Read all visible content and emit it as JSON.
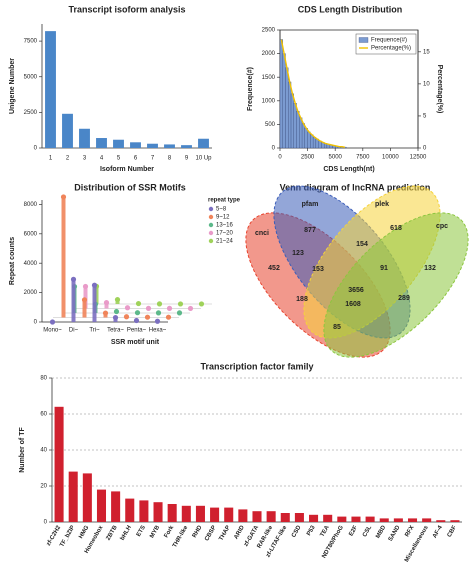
{
  "chart_data": [
    {
      "type": "bar",
      "title": "Transcript isoform analysis",
      "xlabel": "Isoform Number",
      "ylabel": "Unigene Number",
      "categories": [
        "1",
        "2",
        "3",
        "4",
        "5",
        "6",
        "7",
        "8",
        "9",
        "10 Up"
      ],
      "values": [
        8200,
        2400,
        1350,
        700,
        580,
        400,
        300,
        250,
        200,
        650
      ],
      "color": "#4a86c8",
      "ylim": [
        0,
        8700
      ],
      "yticks": [
        0,
        2500,
        5000,
        7500
      ]
    },
    {
      "type": "histogram",
      "title": "CDS Length Distribution",
      "xlabel": "CDS Length(nt)",
      "ylabel": "Frequence(#)",
      "y2label": "Percentage(%)",
      "bins": [
        0,
        250,
        500,
        750,
        1000,
        1250,
        1500,
        1750,
        2000,
        2250,
        2500,
        2750,
        3000,
        3250,
        3500,
        3750,
        4000,
        4250,
        4500,
        4750,
        5000,
        5250,
        5500,
        5750,
        6000
      ],
      "series": [
        {
          "name": "Frequence(#)",
          "color": "#7b9bd1",
          "values": [
            2300,
            2000,
            1700,
            1400,
            1150,
            950,
            780,
            640,
            520,
            420,
            340,
            280,
            230,
            190,
            150,
            120,
            100,
            80,
            65,
            50,
            40,
            32,
            25,
            20
          ]
        },
        {
          "name": "Percentage(%)",
          "color": "#f2c200",
          "axis": "y2",
          "x": [
            125,
            375,
            625,
            875,
            1125,
            1375,
            1625,
            1875,
            2125,
            2375,
            2625,
            2875,
            3125,
            3375,
            3625,
            3875,
            4125,
            4375,
            4625,
            4875,
            5125,
            5375,
            5625,
            5875
          ],
          "values": [
            16.9,
            14.7,
            12.5,
            10.3,
            8.5,
            7.0,
            5.7,
            4.7,
            3.8,
            3.1,
            2.5,
            2.1,
            1.7,
            1.4,
            1.1,
            0.9,
            0.7,
            0.6,
            0.5,
            0.4,
            0.3,
            0.2,
            0.2,
            0.1
          ]
        }
      ],
      "xlim": [
        0,
        12500
      ],
      "xticks": [
        0,
        2500,
        5000,
        7500,
        10000,
        12500
      ],
      "ylim": [
        0,
        2500
      ],
      "yticks": [
        0,
        500,
        1000,
        1500,
        2000,
        2500
      ],
      "y2lim": [
        0,
        18.4
      ],
      "y2ticks": [
        0,
        5,
        10,
        15
      ],
      "legend": "upper right"
    },
    {
      "type": "bar3d",
      "title": "Distribution of SSR Motifs",
      "xlabel": "SSR motif unit",
      "ylabel": "Repeat counts",
      "legend_title": "repeat type",
      "categories": [
        "Mono~",
        "Di~",
        "Tri~",
        "Tetra~",
        "Penta~",
        "Hexa~"
      ],
      "series": [
        {
          "name": "5~8",
          "color": "#7b6fc0",
          "values": [
            0,
            2900,
            2500,
            300,
            100,
            50
          ]
        },
        {
          "name": "9~12",
          "color": "#f0845a",
          "values": [
            8200,
            1200,
            300,
            50,
            20,
            20
          ]
        },
        {
          "name": "13~16",
          "color": "#5cb88a",
          "values": [
            1800,
            600,
            100,
            20,
            10,
            10
          ]
        },
        {
          "name": "17~20",
          "color": "#e99bc9",
          "values": [
            1500,
            400,
            50,
            10,
            10,
            5
          ]
        },
        {
          "name": "21~24",
          "color": "#9fd25a",
          "values": [
            1200,
            300,
            30,
            10,
            5,
            5
          ]
        }
      ],
      "ylim": [
        0,
        8300
      ],
      "yticks": [
        0,
        2000,
        4000,
        6000,
        8000
      ]
    },
    {
      "type": "venn",
      "title": "Venn diagram of lncRNA prediction",
      "sets": [
        {
          "name": "cnci",
          "color": "#e8432e"
        },
        {
          "name": "pfam",
          "color": "#3b5db8"
        },
        {
          "name": "plek",
          "color": "#f5d33a"
        },
        {
          "name": "cpc",
          "color": "#8cc63e"
        }
      ],
      "regions": [
        452,
        877,
        618,
        132,
        123,
        154,
        91,
        153,
        3656,
        188,
        1608,
        289,
        85
      ]
    },
    {
      "type": "bar",
      "title": "Transcription factor family",
      "ylabel": "Number of TF",
      "categories": [
        "zf-C2H2",
        "TF_bZIP",
        "HMG",
        "Homeobox",
        "ZBTB",
        "bHLH",
        "ETS",
        "MYB",
        "Fork",
        "THR-like",
        "RHD",
        "CBSP",
        "THAP",
        "ARID",
        "zf-GATA",
        "RAR-like",
        "zf-LITAF-like",
        "CSD",
        "P53",
        "TEA",
        "NDT80/PhoG",
        "E2F",
        "CSL",
        "MBD",
        "SAND",
        "RFX",
        "Miscellaneous",
        "AF-4",
        "CBF"
      ],
      "values": [
        64,
        28,
        27,
        18,
        17,
        13,
        12,
        11,
        10,
        9,
        9,
        8,
        8,
        7,
        6,
        6,
        5,
        5,
        4,
        4,
        3,
        3,
        3,
        2,
        2,
        2,
        2,
        1,
        1
      ],
      "color": "#d0202e",
      "ylim": [
        0,
        80
      ],
      "yticks": [
        0,
        20,
        40,
        60,
        80
      ],
      "grid": true
    }
  ]
}
